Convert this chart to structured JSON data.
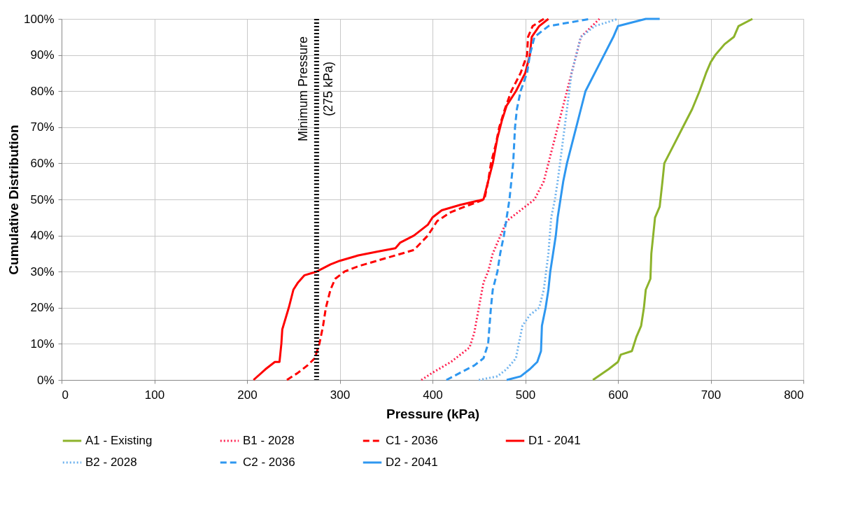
{
  "chart_data": {
    "type": "line",
    "xlabel": "Pressure (kPa)",
    "ylabel": "Cumulative Distribution",
    "xlim": [
      0,
      800
    ],
    "xticks": [
      0,
      100,
      200,
      300,
      400,
      500,
      600,
      700,
      800
    ],
    "ylim": [
      0,
      100
    ],
    "yticks": [
      {
        "value": 0,
        "label": "0%"
      },
      {
        "value": 10,
        "label": "10%"
      },
      {
        "value": 20,
        "label": "20%"
      },
      {
        "value": 30,
        "label": "30%"
      },
      {
        "value": 40,
        "label": "40%"
      },
      {
        "value": 50,
        "label": "50%"
      },
      {
        "value": 60,
        "label": "60%"
      },
      {
        "value": 70,
        "label": "70%"
      },
      {
        "value": 80,
        "label": "80%"
      },
      {
        "value": 90,
        "label": "90%"
      },
      {
        "value": 100,
        "label": "100%"
      }
    ],
    "grid": true,
    "legend": "bottom",
    "marker": "none",
    "ref_lines": [
      {
        "axis": "x",
        "value": 275,
        "label": "Minimum Pressure\n(275 kPa)",
        "color": "#000000",
        "line_style": "dotted"
      }
    ],
    "series": [
      {
        "name": "A1 - Existing",
        "color": "#8db32b",
        "line_style": "solid",
        "x": [
          573,
          590,
          600,
          603,
          615,
          620,
          625,
          628,
          630,
          635,
          636,
          638,
          640,
          645,
          648,
          650,
          660,
          670,
          680,
          688,
          695,
          700,
          705,
          715,
          725,
          730,
          745
        ],
        "values": [
          0,
          3,
          5,
          7,
          8,
          12,
          15,
          20,
          25,
          28,
          35,
          40,
          45,
          48,
          55,
          60,
          65,
          70,
          75,
          80,
          85,
          88,
          90,
          93,
          95,
          98,
          100
        ]
      },
      {
        "name": "B1 - 2028",
        "color": "#ff2050",
        "line_style": "dotted",
        "x": [
          388,
          400,
          420,
          440,
          445,
          450,
          455,
          460,
          465,
          470,
          480,
          495,
          510,
          520,
          525,
          530,
          535,
          540,
          545,
          550,
          555,
          560,
          580
        ],
        "values": [
          0,
          2,
          5,
          9,
          13,
          20,
          27,
          30,
          35,
          38,
          44,
          47,
          50,
          55,
          60,
          65,
          70,
          75,
          80,
          85,
          90,
          95,
          100
        ]
      },
      {
        "name": "C1 - 2036",
        "color": "#ff0000",
        "line_style": "dashed",
        "x": [
          243,
          255,
          265,
          273,
          278,
          282,
          285,
          290,
          295,
          305,
          320,
          340,
          360,
          380,
          395,
          405,
          420,
          440,
          456,
          460,
          463,
          468,
          472,
          478,
          485,
          495,
          502,
          503,
          508,
          520
        ],
        "values": [
          0,
          2,
          4,
          6,
          10,
          15,
          20,
          25,
          28,
          30,
          31.5,
          33,
          34.5,
          36,
          40,
          44,
          46.5,
          48.5,
          50,
          55,
          60,
          65,
          70,
          75,
          80,
          85,
          90,
          95,
          98,
          100
        ]
      },
      {
        "name": "D1 - 2041",
        "color": "#ff0000",
        "line_style": "solid",
        "x": [
          207,
          220,
          230,
          235,
          237,
          238,
          245,
          250,
          255,
          262,
          275,
          290,
          300,
          320,
          340,
          360,
          365,
          380,
          395,
          400,
          410,
          430,
          455,
          460,
          465,
          470,
          475,
          480,
          490,
          500,
          505,
          507,
          515,
          525
        ],
        "values": [
          0,
          3,
          5,
          5,
          10,
          14,
          20,
          25,
          27,
          29,
          30,
          32,
          33,
          34.5,
          35.5,
          36.5,
          38,
          40,
          43,
          45,
          47,
          48.5,
          50,
          55,
          60,
          67,
          72,
          76,
          80,
          85,
          90,
          95,
          98,
          100
        ]
      },
      {
        "name": "B2 - 2028",
        "color": "#6fb3ee",
        "line_style": "dotted",
        "x": [
          450,
          470,
          480,
          490,
          493,
          497,
          505,
          515,
          520,
          525,
          528,
          532,
          535,
          540,
          545,
          550,
          555,
          560,
          575,
          600
        ],
        "values": [
          0,
          1,
          3,
          6,
          10,
          15,
          18,
          20,
          25,
          35,
          45,
          50,
          55,
          65,
          75,
          85,
          90,
          95,
          98,
          100
        ]
      },
      {
        "name": "C2 - 2036",
        "color": "#2e97f0",
        "line_style": "dashed",
        "x": [
          415,
          430,
          445,
          455,
          460,
          463,
          465,
          470,
          473,
          477,
          480,
          483,
          485,
          487,
          488,
          489,
          491,
          495,
          502,
          505,
          510,
          525,
          570
        ],
        "values": [
          0,
          2,
          4,
          6,
          10,
          20,
          25,
          30,
          35,
          40,
          45,
          50,
          55,
          60,
          65,
          70,
          75,
          80,
          85,
          90,
          95,
          98,
          100
        ]
      },
      {
        "name": "D2 - 2041",
        "color": "#2e97f0",
        "line_style": "solid",
        "x": [
          480,
          495,
          505,
          513,
          517,
          518,
          522,
          525,
          527,
          530,
          533,
          535,
          538,
          541,
          545,
          550,
          555,
          560,
          565,
          575,
          585,
          595,
          600,
          630,
          645
        ],
        "values": [
          0,
          1,
          3,
          5,
          8,
          15,
          20,
          25,
          30,
          35,
          40,
          45,
          50,
          55,
          60,
          65,
          70,
          75,
          80,
          85,
          90,
          95,
          98,
          100,
          100
        ]
      }
    ]
  }
}
